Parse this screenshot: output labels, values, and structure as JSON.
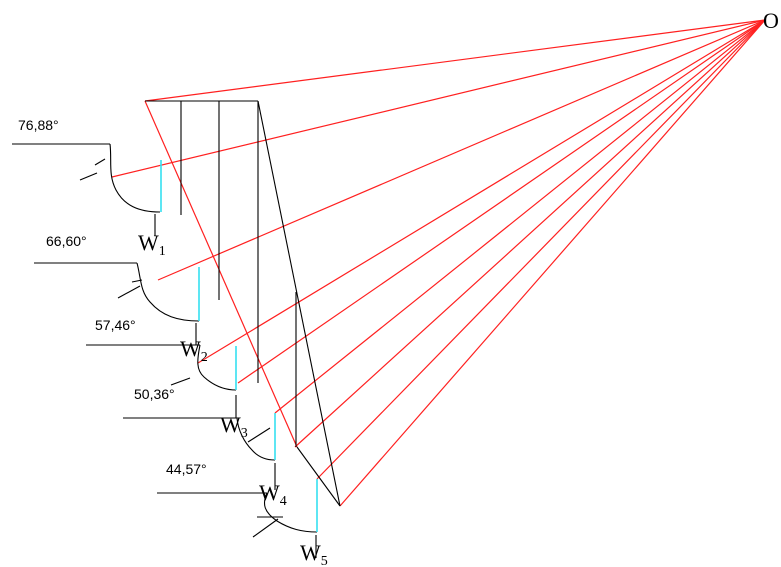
{
  "diagram": {
    "pole_label": "O",
    "angles": [
      "76,88°",
      "66,60°",
      "57,46°",
      "50,36°",
      "44,57°"
    ],
    "weights": [
      {
        "main": "W",
        "sub": "1"
      },
      {
        "main": "W",
        "sub": "2"
      },
      {
        "main": "W",
        "sub": "3"
      },
      {
        "main": "W",
        "sub": "4"
      },
      {
        "main": "W",
        "sub": "5"
      }
    ],
    "colors": {
      "rays": "#ff2020",
      "lines": "#000000",
      "verticals": "#35e0f0"
    }
  }
}
